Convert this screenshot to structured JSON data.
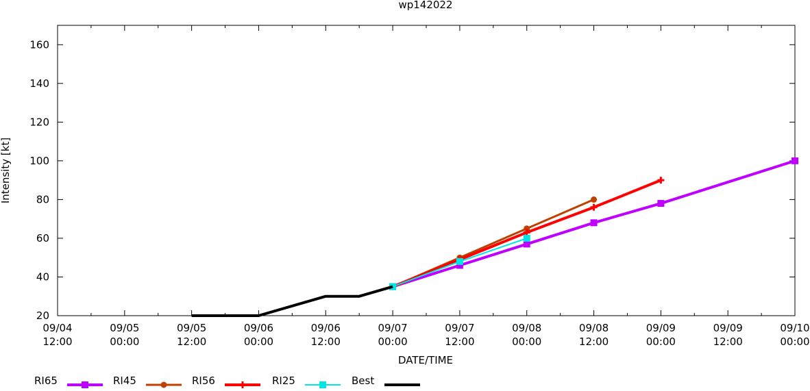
{
  "chart_data": {
    "type": "line",
    "title": "wp142022",
    "xlabel": "DATE/TIME",
    "ylabel": "Intensity [kt]",
    "x_ticks": [
      [
        "09/04",
        "12:00"
      ],
      [
        "09/05",
        "00:00"
      ],
      [
        "09/05",
        "12:00"
      ],
      [
        "09/06",
        "00:00"
      ],
      [
        "09/06",
        "12:00"
      ],
      [
        "09/07",
        "00:00"
      ],
      [
        "09/07",
        "12:00"
      ],
      [
        "09/08",
        "00:00"
      ],
      [
        "09/08",
        "12:00"
      ],
      [
        "09/09",
        "00:00"
      ],
      [
        "09/09",
        "12:00"
      ],
      [
        "09/10",
        "00:00"
      ]
    ],
    "xlim": [
      "09/04 12:00",
      "09/10 00:00"
    ],
    "ylim": [
      20,
      170
    ],
    "y_ticks": [
      20,
      40,
      60,
      80,
      100,
      120,
      140,
      160
    ],
    "grid": false,
    "legend_position": "bottom",
    "series": [
      {
        "name": "RI65",
        "color": "#bf00ff",
        "marker": "square",
        "width": 4,
        "x": [
          "09/07 00:00",
          "09/07 12:00",
          "09/08 00:00",
          "09/08 12:00",
          "09/09 00:00",
          "09/10 00:00"
        ],
        "y": [
          35,
          46,
          57,
          68,
          78,
          100
        ]
      },
      {
        "name": "RI45",
        "color": "#c04000",
        "marker": "circle",
        "width": 3,
        "x": [
          "09/07 00:00",
          "09/07 12:00",
          "09/08 00:00",
          "09/08 12:00"
        ],
        "y": [
          35,
          50,
          65,
          80
        ]
      },
      {
        "name": "RI56",
        "color": "#ff0000",
        "marker": "plus",
        "width": 4,
        "x": [
          "09/07 00:00",
          "09/07 12:00",
          "09/08 00:00",
          "09/08 12:00",
          "09/09 00:00"
        ],
        "y": [
          35,
          49,
          63,
          76,
          90
        ]
      },
      {
        "name": "RI25",
        "color": "#00e5e5",
        "marker": "square",
        "width": 2,
        "x": [
          "09/07 00:00",
          "09/07 12:00",
          "09/08 00:00"
        ],
        "y": [
          35,
          48,
          60
        ]
      },
      {
        "name": "Best",
        "color": "#000000",
        "marker": "none",
        "width": 4,
        "x": [
          "09/05 12:00",
          "09/06 00:00",
          "09/06 12:00",
          "09/06 18:00",
          "09/07 00:00"
        ],
        "y": [
          20,
          20,
          30,
          30,
          35
        ]
      }
    ]
  }
}
